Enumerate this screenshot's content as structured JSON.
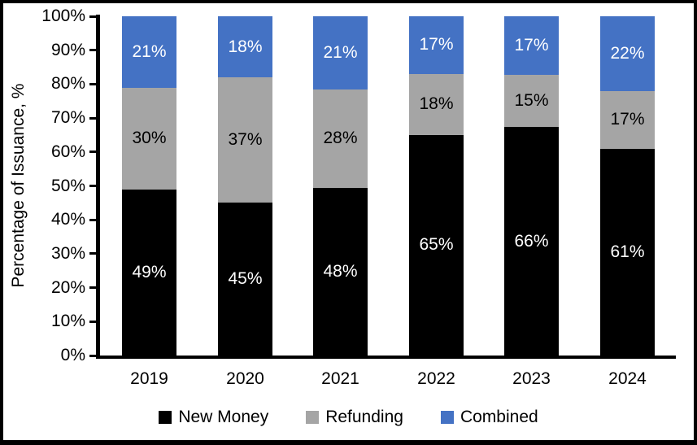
{
  "chart_data": {
    "type": "bar",
    "stacked": true,
    "title": "",
    "ylabel": "Percentage of Issuance, %",
    "xlabel": "",
    "categories": [
      "2019",
      "2020",
      "2021",
      "2022",
      "2023",
      "2024"
    ],
    "series": [
      {
        "name": "New Money",
        "color": "#000000",
        "label_color": "#FFFFFF",
        "values": [
          49,
          45,
          48,
          65,
          66,
          61
        ]
      },
      {
        "name": "Refunding",
        "color": "#A5A5A5",
        "label_color": "#000000",
        "values": [
          30,
          37,
          28,
          18,
          15,
          17
        ]
      },
      {
        "name": "Combined",
        "color": "#4472C4",
        "label_color": "#FFFFFF",
        "values": [
          21,
          18,
          21,
          17,
          17,
          22
        ]
      }
    ],
    "data_label_suffix": "%",
    "y_ticks": [
      "0%",
      "10%",
      "20%",
      "30%",
      "40%",
      "50%",
      "60%",
      "70%",
      "80%",
      "90%",
      "100%"
    ],
    "ylim": [
      0,
      100
    ],
    "grid": false,
    "legend_position": "bottom",
    "axis_color": "#000000",
    "background_color": "#FFFFFF"
  }
}
